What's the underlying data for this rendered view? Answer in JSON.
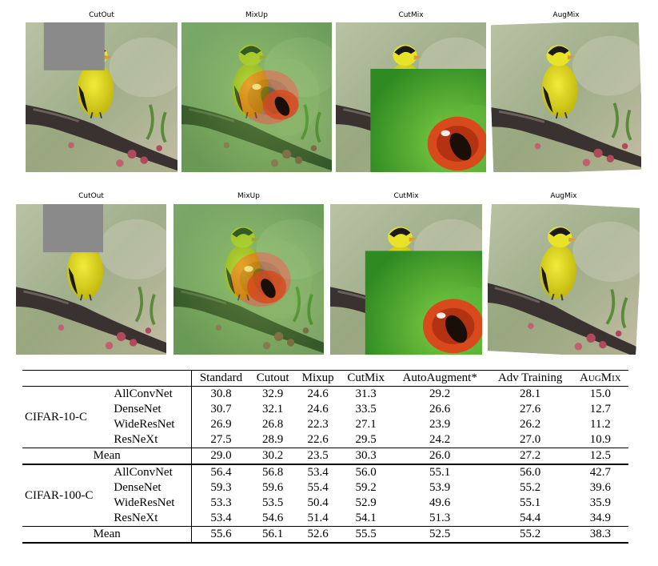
{
  "figure_rows": [
    {
      "labels": {
        "cutout": "CutOut",
        "mixup": "MixUp",
        "cutmix": "CutMix",
        "augmix": "AugMix"
      }
    },
    {
      "labels": {
        "cutout": "CutOut",
        "mixup": "MixUp",
        "cutmix": "CutMix",
        "augmix": "AugMix"
      }
    }
  ],
  "colors": {
    "bird_yellow": "#d9d21a",
    "bird_black": "#1a1a1a",
    "frog_green": "#4fae2f",
    "frog_eye": "#d8491c",
    "cutout_gray": "#8a8a8a",
    "branch": "#3a3230",
    "blossom": "#b04a5a",
    "background": "#a7b592"
  },
  "table": {
    "headers": [
      "Standard",
      "Cutout",
      "Mixup",
      "CutMix",
      "AutoAugment*",
      "Adv Training",
      "AugMix"
    ],
    "datasets": [
      {
        "name": "CIFAR-10-C",
        "rows": [
          {
            "model": "AllConvNet",
            "values": [
              "30.8",
              "32.9",
              "24.6",
              "31.3",
              "29.2",
              "28.1",
              "15.0"
            ]
          },
          {
            "model": "DenseNet",
            "values": [
              "30.7",
              "32.1",
              "24.6",
              "33.5",
              "26.6",
              "27.6",
              "12.7"
            ]
          },
          {
            "model": "WideResNet",
            "values": [
              "26.9",
              "26.8",
              "22.3",
              "27.1",
              "23.9",
              "26.2",
              "11.2"
            ]
          },
          {
            "model": "ResNeXt",
            "values": [
              "27.5",
              "28.9",
              "22.6",
              "29.5",
              "24.2",
              "27.0",
              "10.9"
            ]
          }
        ],
        "mean": {
          "label": "Mean",
          "values": [
            "29.0",
            "30.2",
            "23.5",
            "30.3",
            "26.0",
            "27.2",
            "12.5"
          ]
        }
      },
      {
        "name": "CIFAR-100-C",
        "rows": [
          {
            "model": "AllConvNet",
            "values": [
              "56.4",
              "56.8",
              "53.4",
              "56.0",
              "55.1",
              "56.0",
              "42.7"
            ]
          },
          {
            "model": "DenseNet",
            "values": [
              "59.3",
              "59.6",
              "55.4",
              "59.2",
              "53.9",
              "55.2",
              "39.6"
            ]
          },
          {
            "model": "WideResNet",
            "values": [
              "53.3",
              "53.5",
              "50.4",
              "52.9",
              "49.6",
              "55.1",
              "35.9"
            ]
          },
          {
            "model": "ResNeXt",
            "values": [
              "53.4",
              "54.6",
              "51.4",
              "54.1",
              "51.3",
              "54.4",
              "34.9"
            ]
          }
        ],
        "mean": {
          "label": "Mean",
          "values": [
            "55.6",
            "56.1",
            "52.6",
            "55.5",
            "52.5",
            "55.2",
            "38.3"
          ]
        }
      }
    ]
  }
}
